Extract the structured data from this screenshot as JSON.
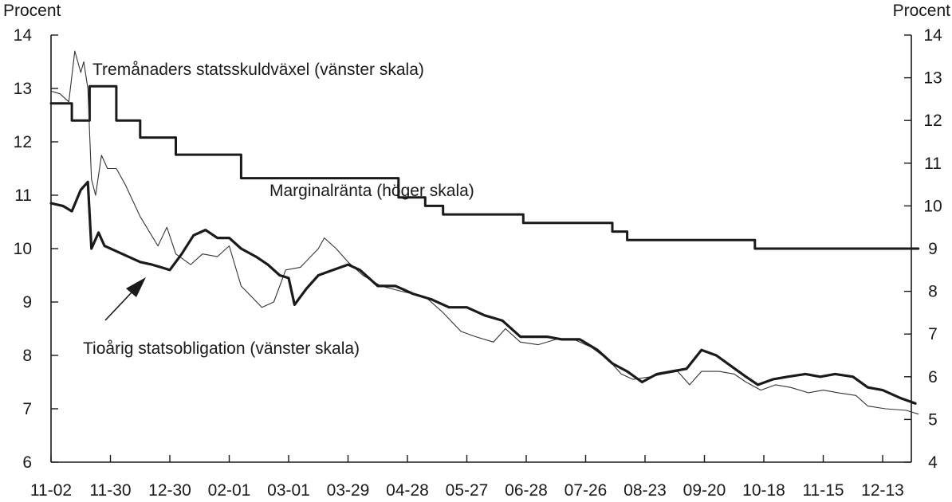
{
  "chart_data": {
    "type": "line",
    "left_axis": {
      "unit_label": "Procent",
      "ylim": [
        6,
        14
      ],
      "ticks": [
        6,
        7,
        8,
        9,
        10,
        11,
        12,
        13,
        14
      ]
    },
    "right_axis": {
      "unit_label": "Procent",
      "ylim": [
        4,
        14
      ],
      "ticks": [
        4,
        5,
        6,
        7,
        8,
        9,
        10,
        11,
        12,
        13,
        14
      ]
    },
    "x_ticks": [
      "11-02",
      "11-30",
      "12-30",
      "02-01",
      "03-01",
      "03-29",
      "04-28",
      "05-27",
      "06-28",
      "07-26",
      "08-23",
      "09-20",
      "10-18",
      "11-15",
      "12-13"
    ],
    "series": [
      {
        "name": "Marginalränta (höger skala)",
        "axis": "right",
        "step": true,
        "points": [
          [
            0,
            12.4
          ],
          [
            0.35,
            12.4
          ],
          [
            0.35,
            12.0
          ],
          [
            0.65,
            12.0
          ],
          [
            0.65,
            12.8
          ],
          [
            1.1,
            12.8
          ],
          [
            1.1,
            12.0
          ],
          [
            1.5,
            12.0
          ],
          [
            1.5,
            11.6
          ],
          [
            2.1,
            11.6
          ],
          [
            2.1,
            11.2
          ],
          [
            3.2,
            11.2
          ],
          [
            3.2,
            10.65
          ],
          [
            5.85,
            10.65
          ],
          [
            5.85,
            10.2
          ],
          [
            6.3,
            10.2
          ],
          [
            6.3,
            10.0
          ],
          [
            6.6,
            10.0
          ],
          [
            6.6,
            9.8
          ],
          [
            7.95,
            9.8
          ],
          [
            7.95,
            9.6
          ],
          [
            9.45,
            9.6
          ],
          [
            9.45,
            9.4
          ],
          [
            9.7,
            9.4
          ],
          [
            9.7,
            9.2
          ],
          [
            11.85,
            9.2
          ],
          [
            11.85,
            9.0
          ],
          [
            14.6,
            9.0
          ]
        ]
      },
      {
        "name": "Tremånaders statsskuldväxel (vänster skala)",
        "axis": "left",
        "thin": true,
        "points": [
          [
            0,
            12.95
          ],
          [
            0.15,
            12.9
          ],
          [
            0.3,
            12.75
          ],
          [
            0.4,
            13.7
          ],
          [
            0.5,
            13.3
          ],
          [
            0.55,
            13.5
          ],
          [
            0.62,
            13.0
          ],
          [
            0.68,
            11.3
          ],
          [
            0.75,
            11.0
          ],
          [
            0.85,
            11.75
          ],
          [
            0.95,
            11.5
          ],
          [
            1.1,
            11.5
          ],
          [
            1.25,
            11.2
          ],
          [
            1.5,
            10.6
          ],
          [
            1.8,
            10.05
          ],
          [
            1.95,
            10.4
          ],
          [
            2.1,
            9.9
          ],
          [
            2.35,
            9.7
          ],
          [
            2.55,
            9.9
          ],
          [
            2.8,
            9.85
          ],
          [
            3.0,
            10.05
          ],
          [
            3.2,
            9.3
          ],
          [
            3.55,
            8.9
          ],
          [
            3.75,
            9.0
          ],
          [
            3.95,
            9.6
          ],
          [
            4.2,
            9.65
          ],
          [
            4.5,
            10.0
          ],
          [
            4.6,
            10.2
          ],
          [
            4.8,
            10.0
          ],
          [
            5.0,
            9.75
          ],
          [
            5.25,
            9.5
          ],
          [
            5.55,
            9.3
          ],
          [
            5.9,
            9.2
          ],
          [
            6.3,
            9.1
          ],
          [
            6.6,
            8.8
          ],
          [
            6.9,
            8.45
          ],
          [
            7.15,
            8.35
          ],
          [
            7.45,
            8.25
          ],
          [
            7.65,
            8.5
          ],
          [
            7.9,
            8.25
          ],
          [
            8.2,
            8.2
          ],
          [
            8.5,
            8.3
          ],
          [
            8.8,
            8.3
          ],
          [
            9.1,
            8.15
          ],
          [
            9.4,
            7.9
          ],
          [
            9.6,
            7.65
          ],
          [
            9.8,
            7.55
          ],
          [
            10.1,
            7.6
          ],
          [
            10.3,
            7.65
          ],
          [
            10.55,
            7.7
          ],
          [
            10.75,
            7.45
          ],
          [
            10.95,
            7.7
          ],
          [
            11.25,
            7.7
          ],
          [
            11.5,
            7.65
          ],
          [
            11.7,
            7.5
          ],
          [
            11.95,
            7.35
          ],
          [
            12.2,
            7.45
          ],
          [
            12.45,
            7.4
          ],
          [
            12.75,
            7.3
          ],
          [
            13.0,
            7.35
          ],
          [
            13.25,
            7.3
          ],
          [
            13.55,
            7.25
          ],
          [
            13.75,
            7.05
          ],
          [
            14.05,
            7.0
          ],
          [
            14.4,
            6.97
          ],
          [
            14.6,
            6.9
          ]
        ]
      },
      {
        "name": "Tioårig statsobligation (vänster skala)",
        "axis": "left",
        "thin": false,
        "points": [
          [
            0,
            10.85
          ],
          [
            0.2,
            10.8
          ],
          [
            0.35,
            10.7
          ],
          [
            0.5,
            11.1
          ],
          [
            0.62,
            11.25
          ],
          [
            0.68,
            10.0
          ],
          [
            0.8,
            10.3
          ],
          [
            0.9,
            10.05
          ],
          [
            1.2,
            9.9
          ],
          [
            1.5,
            9.75
          ],
          [
            1.7,
            9.7
          ],
          [
            1.85,
            9.65
          ],
          [
            2.0,
            9.6
          ],
          [
            2.2,
            9.9
          ],
          [
            2.4,
            10.25
          ],
          [
            2.6,
            10.35
          ],
          [
            2.8,
            10.2
          ],
          [
            3.0,
            10.2
          ],
          [
            3.2,
            10.0
          ],
          [
            3.45,
            9.85
          ],
          [
            3.65,
            9.7
          ],
          [
            3.85,
            9.5
          ],
          [
            4.0,
            9.45
          ],
          [
            4.1,
            8.95
          ],
          [
            4.3,
            9.25
          ],
          [
            4.5,
            9.5
          ],
          [
            4.75,
            9.6
          ],
          [
            5.0,
            9.7
          ],
          [
            5.2,
            9.6
          ],
          [
            5.5,
            9.3
          ],
          [
            5.8,
            9.3
          ],
          [
            6.1,
            9.15
          ],
          [
            6.4,
            9.05
          ],
          [
            6.7,
            8.9
          ],
          [
            7.0,
            8.9
          ],
          [
            7.3,
            8.75
          ],
          [
            7.6,
            8.65
          ],
          [
            7.9,
            8.35
          ],
          [
            8.1,
            8.35
          ],
          [
            8.35,
            8.35
          ],
          [
            8.6,
            8.3
          ],
          [
            8.9,
            8.3
          ],
          [
            9.2,
            8.1
          ],
          [
            9.45,
            7.85
          ],
          [
            9.7,
            7.7
          ],
          [
            9.95,
            7.5
          ],
          [
            10.2,
            7.65
          ],
          [
            10.45,
            7.7
          ],
          [
            10.7,
            7.75
          ],
          [
            10.95,
            8.1
          ],
          [
            11.2,
            8.0
          ],
          [
            11.45,
            7.8
          ],
          [
            11.7,
            7.6
          ],
          [
            11.9,
            7.45
          ],
          [
            12.15,
            7.55
          ],
          [
            12.4,
            7.6
          ],
          [
            12.7,
            7.65
          ],
          [
            12.95,
            7.6
          ],
          [
            13.2,
            7.65
          ],
          [
            13.5,
            7.6
          ],
          [
            13.75,
            7.4
          ],
          [
            14.0,
            7.35
          ],
          [
            14.3,
            7.2
          ],
          [
            14.55,
            7.1
          ]
        ]
      }
    ],
    "annotations": [
      {
        "text": "Tremånaders statsskuldväxel (vänster skala)"
      },
      {
        "text": "Marginalränta (höger skala)"
      },
      {
        "text": "Tioårig statsobligation (vänster skala)"
      }
    ],
    "grid": false
  }
}
